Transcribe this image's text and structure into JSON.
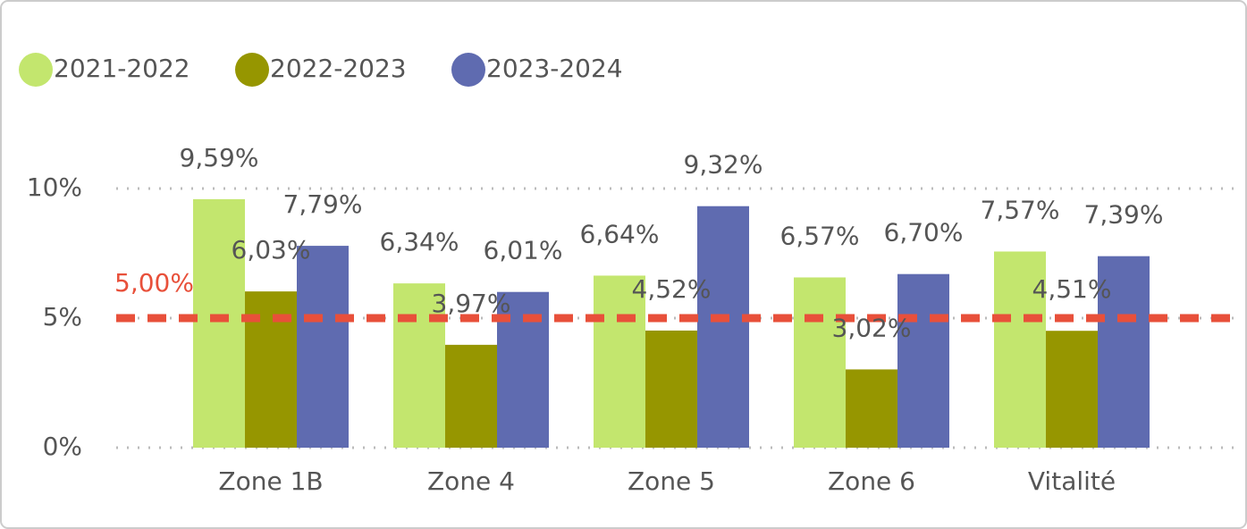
{
  "chart_data": {
    "type": "bar",
    "categories": [
      "Zone 1B",
      "Zone 4",
      "Zone 5",
      "Zone 6",
      "Vitalité"
    ],
    "series": [
      {
        "name": "2021-2022",
        "color": "#c3e66e",
        "values": [
          9.59,
          6.34,
          6.64,
          6.57,
          7.57
        ],
        "value_labels": [
          "9,59%",
          "6,34%",
          "6,64%",
          "6,57%",
          "7,57%"
        ]
      },
      {
        "name": "2022-2023",
        "color": "#969600",
        "values": [
          6.03,
          3.97,
          4.52,
          3.02,
          4.51
        ],
        "value_labels": [
          "6,03%",
          "3,97%",
          "4,52%",
          "3,02%",
          "4,51%"
        ]
      },
      {
        "name": "2023-2024",
        "color": "#5f6bb0",
        "values": [
          7.79,
          6.01,
          9.32,
          6.7,
          7.39
        ],
        "value_labels": [
          "7,79%",
          "6,01%",
          "9,32%",
          "6,70%",
          "7,39%"
        ]
      }
    ],
    "ylim": [
      0,
      10
    ],
    "yticks": [
      {
        "value": 0,
        "label": "0%"
      },
      {
        "value": 5,
        "label": "5%"
      },
      {
        "value": 10,
        "label": "10%"
      }
    ],
    "grid": true,
    "legend": "top-left",
    "reference_line": {
      "value": 5,
      "label": "5,00%",
      "color": "#e8503a"
    }
  }
}
